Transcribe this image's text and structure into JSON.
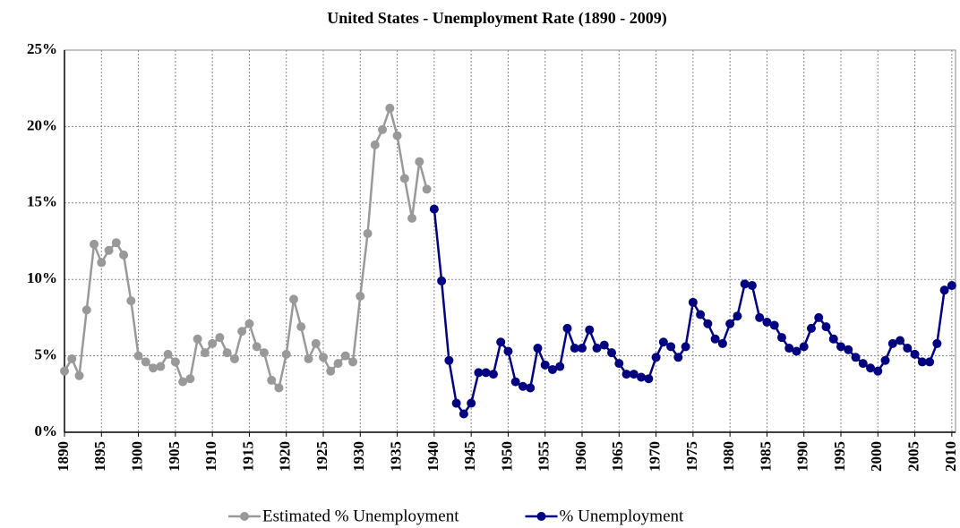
{
  "chart_data": {
    "type": "line",
    "title": "United States - Unemployment Rate (1890 - 2009)",
    "xlim": [
      1890,
      2010.5
    ],
    "xticks": [
      1890,
      1895,
      1900,
      1905,
      1910,
      1915,
      1920,
      1925,
      1930,
      1935,
      1940,
      1945,
      1950,
      1955,
      1960,
      1965,
      1970,
      1975,
      1980,
      1985,
      1990,
      1995,
      2000,
      2005,
      2010
    ],
    "ylim": [
      0,
      25
    ],
    "yticks": [
      {
        "value": 0,
        "label": "0%"
      },
      {
        "value": 5,
        "label": "5%"
      },
      {
        "value": 10,
        "label": "10%"
      },
      {
        "value": 15,
        "label": "15%"
      },
      {
        "value": 20,
        "label": "20%"
      },
      {
        "value": 25,
        "label": "25%"
      }
    ],
    "grid": true,
    "legend": "bottom",
    "series": [
      {
        "name": "Estimated % Unemployment",
        "color": "#999999",
        "x": [
          1890,
          1891,
          1892,
          1893,
          1894,
          1895,
          1896,
          1897,
          1898,
          1899,
          1900,
          1901,
          1902,
          1903,
          1904,
          1905,
          1906,
          1907,
          1908,
          1909,
          1910,
          1911,
          1912,
          1913,
          1914,
          1915,
          1916,
          1917,
          1918,
          1919,
          1920,
          1921,
          1922,
          1923,
          1924,
          1925,
          1926,
          1927,
          1928,
          1929,
          1930,
          1931,
          1932,
          1933,
          1934,
          1935,
          1936,
          1937,
          1938,
          1939
        ],
        "values": [
          4.0,
          4.8,
          3.7,
          8.0,
          12.3,
          11.1,
          11.9,
          12.4,
          11.6,
          8.6,
          5.0,
          4.6,
          4.2,
          4.3,
          5.1,
          4.6,
          3.3,
          3.5,
          6.1,
          5.2,
          5.8,
          6.2,
          5.2,
          4.8,
          6.6,
          7.1,
          5.6,
          5.2,
          3.4,
          2.9,
          5.1,
          8.7,
          6.9,
          4.8,
          5.8,
          4.9,
          4.0,
          4.5,
          5.0,
          4.6,
          8.9,
          13.0,
          18.8,
          19.8,
          21.2,
          19.4,
          16.6,
          14.0,
          17.7,
          15.9
        ]
      },
      {
        "name": "% Unemployment",
        "color": "#000080",
        "x": [
          1940,
          1941,
          1942,
          1943,
          1944,
          1945,
          1946,
          1947,
          1948,
          1949,
          1950,
          1951,
          1952,
          1953,
          1954,
          1955,
          1956,
          1957,
          1958,
          1959,
          1960,
          1961,
          1962,
          1963,
          1964,
          1965,
          1966,
          1967,
          1968,
          1969,
          1970,
          1971,
          1972,
          1973,
          1974,
          1975,
          1976,
          1977,
          1978,
          1979,
          1980,
          1981,
          1982,
          1983,
          1984,
          1985,
          1986,
          1987,
          1988,
          1989,
          1990,
          1991,
          1992,
          1993,
          1994,
          1995,
          1996,
          1997,
          1998,
          1999,
          2000,
          2001,
          2002,
          2003,
          2004,
          2005,
          2006,
          2007,
          2008,
          2009,
          2010
        ],
        "values": [
          14.6,
          9.9,
          4.7,
          1.9,
          1.2,
          1.9,
          3.9,
          3.9,
          3.8,
          5.9,
          5.3,
          3.3,
          3.0,
          2.9,
          5.5,
          4.4,
          4.1,
          4.3,
          6.8,
          5.5,
          5.5,
          6.7,
          5.5,
          5.7,
          5.2,
          4.5,
          3.8,
          3.8,
          3.6,
          3.5,
          4.9,
          5.9,
          5.6,
          4.9,
          5.6,
          8.5,
          7.7,
          7.1,
          6.1,
          5.8,
          7.1,
          7.6,
          9.7,
          9.6,
          7.5,
          7.2,
          7.0,
          6.2,
          5.5,
          5.3,
          5.6,
          6.8,
          7.5,
          6.9,
          6.1,
          5.6,
          5.4,
          4.9,
          4.5,
          4.2,
          4.0,
          4.7,
          5.8,
          6.0,
          5.5,
          5.1,
          4.6,
          4.6,
          5.8,
          9.3,
          9.6
        ]
      }
    ]
  }
}
